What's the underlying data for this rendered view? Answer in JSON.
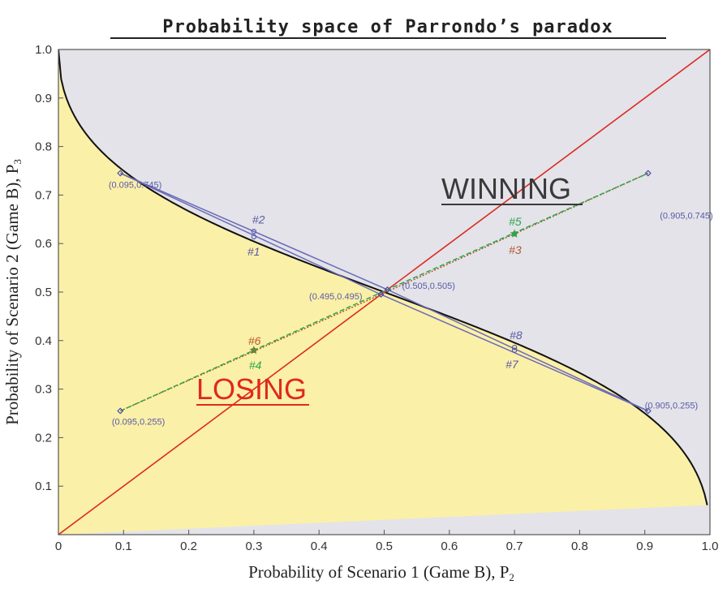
{
  "chart_data": {
    "type": "line",
    "title": "Probability space of Parrondo’s paradox",
    "xlabel": "Probability of Scenario 1 (Game B), P",
    "xlabel_sub": "2",
    "ylabel": "Probability of Scenario 2 (Game B), P",
    "ylabel_sub": "3",
    "xlim": [
      0,
      1
    ],
    "ylim": [
      0,
      1
    ],
    "x_ticks": [
      "0",
      "0.1",
      "0.2",
      "0.3",
      "0.4",
      "0.5",
      "0.6",
      "0.7",
      "0.8",
      "0.9",
      "1.0"
    ],
    "y_ticks": [
      "0.1",
      "0.2",
      "0.3",
      "0.4",
      "0.5",
      "0.6",
      "0.7",
      "0.8",
      "0.9",
      "1.0"
    ],
    "regions": {
      "winning": {
        "label": "WINNING",
        "color": "#e3e3e9"
      },
      "losing": {
        "label": "LOSING",
        "color": "#fbf0a8"
      }
    },
    "boundary_curve": "P3 = (1 - P2) / (1 - P2 + sqrt(P2 (1 - P2)))",
    "diagonal": {
      "from": [
        0,
        0
      ],
      "to": [
        1,
        1
      ],
      "color": "#dd2a22"
    },
    "points": [
      {
        "label": "(0.095,0.745)",
        "x": 0.095,
        "y": 0.745
      },
      {
        "label": "(0.905,0.745)",
        "x": 0.905,
        "y": 0.745
      },
      {
        "label": "(0.495,0.495)",
        "x": 0.495,
        "y": 0.495
      },
      {
        "label": "(0.505,0.505)",
        "x": 0.505,
        "y": 0.505
      },
      {
        "label": "(0.095,0.255)",
        "x": 0.095,
        "y": 0.255
      },
      {
        "label": "(0.905,0.255)",
        "x": 0.905,
        "y": 0.255
      }
    ],
    "markers": [
      {
        "label": "#1",
        "x": 0.3,
        "y": 0.614,
        "color": "#5a5aa8"
      },
      {
        "label": "#2",
        "x": 0.3,
        "y": 0.625,
        "color": "#5a5aa8"
      },
      {
        "label": "#3",
        "x": 0.7,
        "y": 0.62,
        "color": "#b8552e"
      },
      {
        "label": "#4",
        "x": 0.3,
        "y": 0.38,
        "color": "#2aa84a"
      },
      {
        "label": "#5",
        "x": 0.7,
        "y": 0.62,
        "color": "#2aa84a"
      },
      {
        "label": "#6",
        "x": 0.3,
        "y": 0.38,
        "color": "#b8552e"
      },
      {
        "label": "#7",
        "x": 0.7,
        "y": 0.38,
        "color": "#5a5aa8"
      },
      {
        "label": "#8",
        "x": 0.7,
        "y": 0.386,
        "color": "#5a5aa8"
      }
    ],
    "series": [
      {
        "x": [
          0.095,
          0.505,
          0.905
        ],
        "y": [
          0.745,
          0.505,
          0.255
        ],
        "color": "#6a6ab8"
      },
      {
        "x": [
          0.095,
          0.495,
          0.905
        ],
        "y": [
          0.745,
          0.495,
          0.255
        ],
        "color": "#6a6ab8"
      },
      {
        "x": [
          0.095,
          0.495,
          0.905
        ],
        "y": [
          0.255,
          0.495,
          0.745
        ],
        "color": "#b8552e"
      },
      {
        "x": [
          0.095,
          0.505,
          0.905
        ],
        "y": [
          0.255,
          0.505,
          0.745
        ],
        "color": "#2aa84a"
      }
    ]
  }
}
